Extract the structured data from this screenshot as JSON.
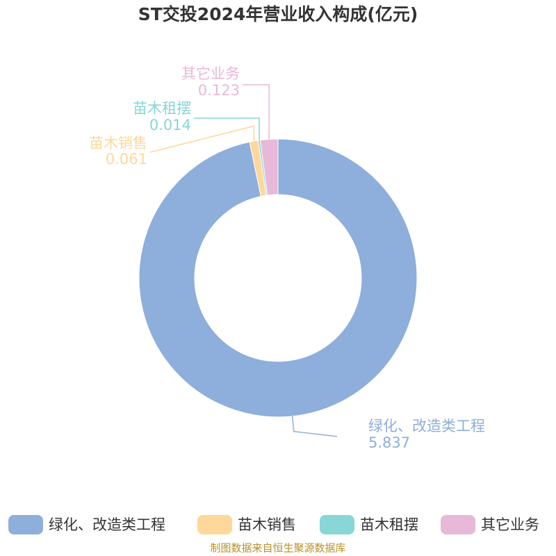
{
  "chart_data": {
    "type": "pie",
    "title": "ST交投2024年营业收入构成(亿元)",
    "categories": [
      "绿化、改造类工程",
      "苗木销售",
      "苗木租摆",
      "其它业务"
    ],
    "values": [
      5.837,
      0.061,
      0.014,
      0.123
    ],
    "colors": [
      "#8eaedb",
      "#fdd89a",
      "#88d6d6",
      "#e8b8d8"
    ],
    "source": "制图数据来自恒生聚源数据库"
  }
}
